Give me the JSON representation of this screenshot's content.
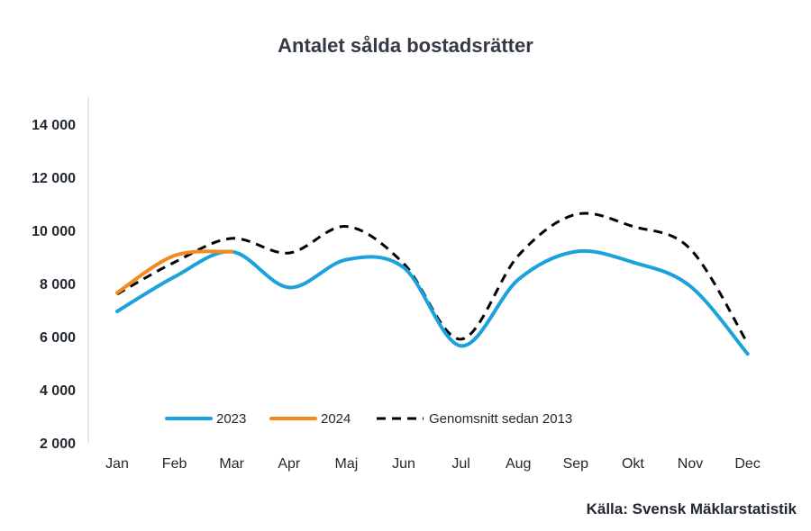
{
  "chart_data": {
    "type": "line",
    "title": "Antalet sålda bostadsrätter",
    "xlabel": "",
    "ylabel": "",
    "categories": [
      "Jan",
      "Feb",
      "Mar",
      "Apr",
      "Maj",
      "Jun",
      "Jul",
      "Aug",
      "Sep",
      "Okt",
      "Nov",
      "Dec"
    ],
    "ylim": [
      2000,
      14000
    ],
    "yticks": [
      2000,
      4000,
      6000,
      8000,
      10000,
      12000,
      14000
    ],
    "ytick_labels": [
      "2 000",
      "4 000",
      "6 000",
      "8 000",
      "10 000",
      "12 000",
      "14 000"
    ],
    "grid": false,
    "legend_position": "bottom-inside",
    "series": [
      {
        "name": "2023",
        "color": "#1ba1dc",
        "style": "solid",
        "values": [
          6950,
          8250,
          9200,
          7850,
          8900,
          8600,
          5650,
          8150,
          9200,
          8800,
          7900,
          5350
        ]
      },
      {
        "name": "2024",
        "color": "#f28a1c",
        "style": "solid",
        "values": [
          7650,
          9050,
          9200,
          null,
          null,
          null,
          null,
          null,
          null,
          null,
          null,
          null
        ]
      },
      {
        "name": "Genomsnitt sedan 2013",
        "color": "#000000",
        "style": "dashed",
        "values": [
          7600,
          8800,
          9700,
          9150,
          10150,
          8750,
          5900,
          9050,
          10600,
          10150,
          9300,
          5750
        ]
      }
    ]
  },
  "source_note": "Källa: Svensk Mäklarstatistik"
}
